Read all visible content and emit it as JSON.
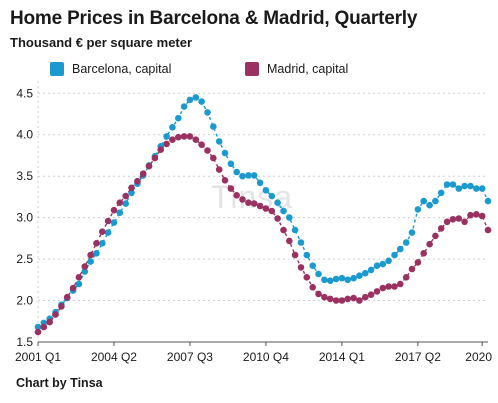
{
  "header": {
    "title": "Home Prices in Barcelona & Madrid, Quarterly",
    "subtitle": "Thousand € per square meter"
  },
  "footer": {
    "credit": "Chart by Tinsa"
  },
  "watermark": "Tinsa",
  "colors": {
    "barcelona": "#1b9ad0",
    "madrid": "#9b3160",
    "grid": "#cfcfcf",
    "axis": "#555555"
  },
  "chart_data": {
    "type": "line",
    "title": "Home Prices in Barcelona & Madrid, Quarterly",
    "subtitle": "Thousand € per square meter",
    "x_tick_labels": [
      "2001 Q1",
      "2004 Q2",
      "2007 Q3",
      "2010 Q4",
      "2014 Q1",
      "2017 Q2",
      "2020"
    ],
    "x_tick_index": [
      0,
      13,
      26,
      39,
      52,
      65,
      76
    ],
    "y_ticks": [
      1.5,
      2.0,
      2.5,
      3.0,
      3.5,
      4.0,
      4.5
    ],
    "ylim": [
      1.5,
      4.6
    ],
    "grid": true,
    "legend_position": "top",
    "x": [
      "2001 Q1",
      "2001 Q2",
      "2001 Q3",
      "2001 Q4",
      "2002 Q1",
      "2002 Q2",
      "2002 Q3",
      "2002 Q4",
      "2003 Q1",
      "2003 Q2",
      "2003 Q3",
      "2003 Q4",
      "2004 Q1",
      "2004 Q2",
      "2004 Q3",
      "2004 Q4",
      "2005 Q1",
      "2005 Q2",
      "2005 Q3",
      "2005 Q4",
      "2006 Q1",
      "2006 Q2",
      "2006 Q3",
      "2006 Q4",
      "2007 Q1",
      "2007 Q2",
      "2007 Q3",
      "2007 Q4",
      "2008 Q1",
      "2008 Q2",
      "2008 Q3",
      "2008 Q4",
      "2009 Q1",
      "2009 Q2",
      "2009 Q3",
      "2009 Q4",
      "2010 Q1",
      "2010 Q2",
      "2010 Q3",
      "2010 Q4",
      "2011 Q1",
      "2011 Q2",
      "2011 Q3",
      "2011 Q4",
      "2012 Q1",
      "2012 Q2",
      "2012 Q3",
      "2012 Q4",
      "2013 Q1",
      "2013 Q2",
      "2013 Q3",
      "2013 Q4",
      "2014 Q1",
      "2014 Q2",
      "2014 Q3",
      "2014 Q4",
      "2015 Q1",
      "2015 Q2",
      "2015 Q3",
      "2015 Q4",
      "2016 Q1",
      "2016 Q2",
      "2016 Q3",
      "2016 Q4",
      "2017 Q1",
      "2017 Q2",
      "2017 Q3",
      "2017 Q4",
      "2018 Q1",
      "2018 Q2",
      "2018 Q3",
      "2018 Q4",
      "2019 Q1",
      "2019 Q2",
      "2019 Q3",
      "2019 Q4",
      "2020 Q1",
      "2020 Q2"
    ],
    "series": [
      {
        "name": "Barcelona, capital",
        "color": "#1b9ad0",
        "values": [
          1.68,
          1.73,
          1.78,
          1.86,
          1.95,
          2.03,
          2.12,
          2.2,
          2.35,
          2.47,
          2.57,
          2.69,
          2.82,
          2.94,
          3.06,
          3.17,
          3.3,
          3.41,
          3.51,
          3.63,
          3.74,
          3.86,
          3.98,
          4.09,
          4.2,
          4.34,
          4.42,
          4.45,
          4.4,
          4.27,
          4.1,
          3.92,
          3.78,
          3.65,
          3.55,
          3.5,
          3.51,
          3.51,
          3.42,
          3.33,
          3.26,
          3.18,
          3.08,
          3.0,
          2.85,
          2.7,
          2.55,
          2.42,
          2.32,
          2.25,
          2.24,
          2.26,
          2.27,
          2.25,
          2.27,
          2.3,
          2.33,
          2.37,
          2.42,
          2.44,
          2.48,
          2.55,
          2.62,
          2.7,
          2.82,
          3.1,
          3.2,
          3.15,
          3.2,
          3.3,
          3.4,
          3.4,
          3.35,
          3.38,
          3.38,
          3.35,
          3.35,
          3.2
        ]
      },
      {
        "name": "Madrid, capital",
        "color": "#9b3160",
        "values": [
          1.62,
          1.68,
          1.74,
          1.83,
          1.93,
          2.04,
          2.15,
          2.28,
          2.41,
          2.55,
          2.69,
          2.83,
          2.96,
          3.09,
          3.18,
          3.26,
          3.36,
          3.44,
          3.53,
          3.62,
          3.72,
          3.82,
          3.89,
          3.94,
          3.97,
          3.98,
          3.98,
          3.94,
          3.88,
          3.81,
          3.72,
          3.58,
          3.45,
          3.35,
          3.27,
          3.22,
          3.18,
          3.17,
          3.14,
          3.11,
          3.08,
          2.99,
          2.85,
          2.72,
          2.55,
          2.4,
          2.28,
          2.16,
          2.08,
          2.04,
          2.02,
          2.0,
          2.0,
          2.02,
          2.03,
          2.0,
          2.04,
          2.07,
          2.11,
          2.15,
          2.17,
          2.17,
          2.2,
          2.28,
          2.38,
          2.46,
          2.57,
          2.68,
          2.78,
          2.87,
          2.95,
          2.98,
          2.99,
          2.95,
          3.03,
          3.04,
          3.02,
          2.85
        ]
      }
    ]
  }
}
